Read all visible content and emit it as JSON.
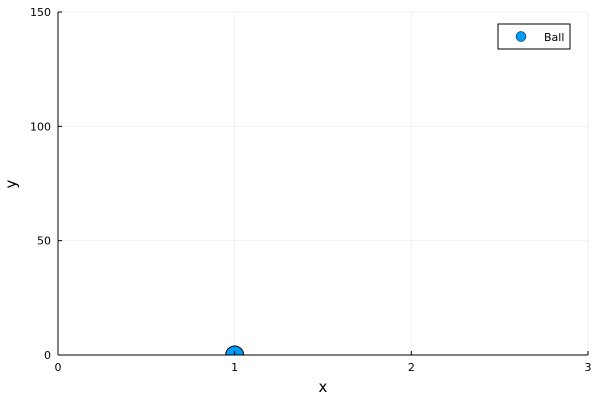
{
  "chart_data": {
    "type": "scatter",
    "xlabel": "x",
    "ylabel": "y",
    "xlim": [
      0,
      3
    ],
    "ylim": [
      0,
      150
    ],
    "xticks": [
      0,
      1,
      2,
      3
    ],
    "yticks": [
      0,
      50,
      100,
      150
    ],
    "grid": true,
    "legend_position": "top-right",
    "series": [
      {
        "name": "Ball",
        "color": "#009af9",
        "x": [
          1
        ],
        "y": [
          0
        ]
      }
    ]
  }
}
